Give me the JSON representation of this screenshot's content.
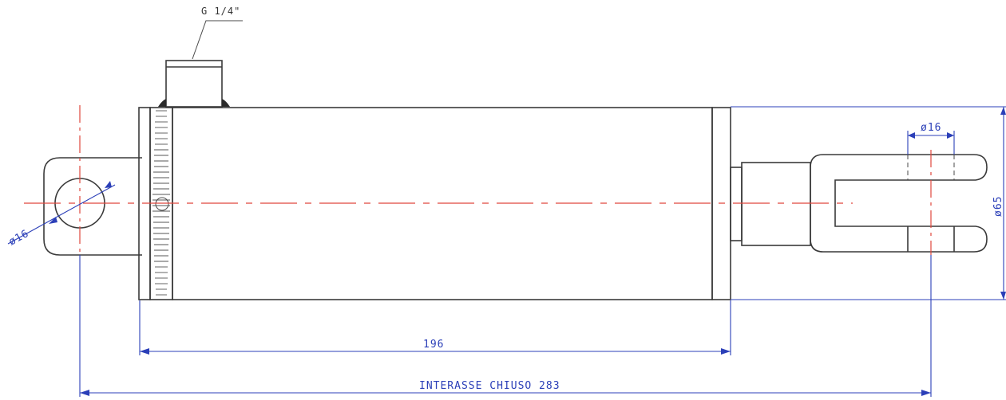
{
  "port": {
    "label": "G 1/4\""
  },
  "dimensions": {
    "left_pin_diameter": "ø16",
    "right_pin_diameter": "ø16",
    "body_diameter": "ø65",
    "body_length": "196",
    "closed_centres": "INTERASSE CHIUSO 283"
  },
  "colors": {
    "outline": "#3a3a3a",
    "centerline": "#e0483e",
    "dimension": "#2b3fb8"
  }
}
